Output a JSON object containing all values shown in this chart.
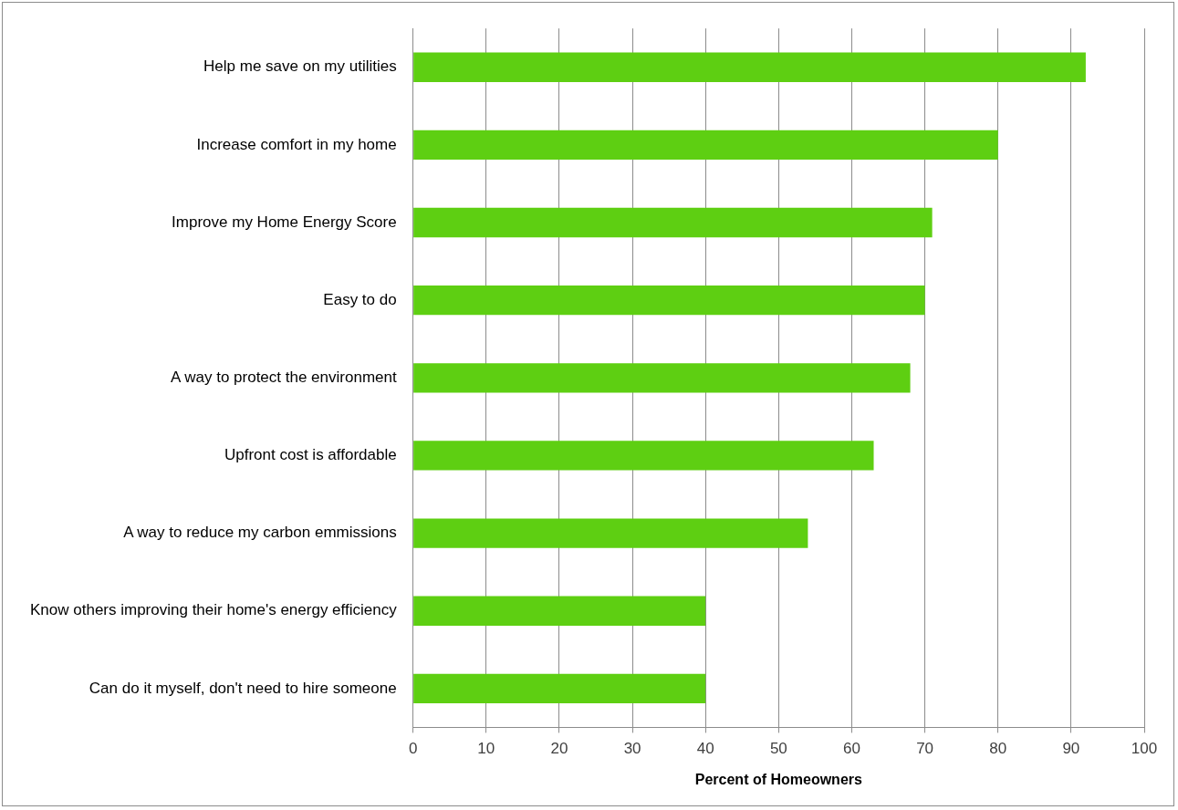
{
  "chart_data": {
    "type": "bar",
    "orientation": "horizontal",
    "xlabel": "Percent of Homeowners",
    "categories": [
      "Help me save on my utilities",
      "Increase comfort in my home",
      "Improve my Home Energy Score",
      "Easy to do",
      "A way to protect the environment",
      "Upfront cost is affordable",
      "A way to reduce my carbon emmissions",
      "Know others improving their home's energy efficiency",
      "Can do it myself, don't need to hire someone"
    ],
    "values": [
      92,
      80,
      71,
      70,
      68,
      63,
      54,
      40,
      40
    ],
    "color": "#5ecf12",
    "xlim": [
      0,
      100
    ],
    "xticks": [
      0,
      10,
      20,
      30,
      40,
      50,
      60,
      70,
      80,
      90,
      100
    ],
    "grid": "x",
    "legend": false
  }
}
